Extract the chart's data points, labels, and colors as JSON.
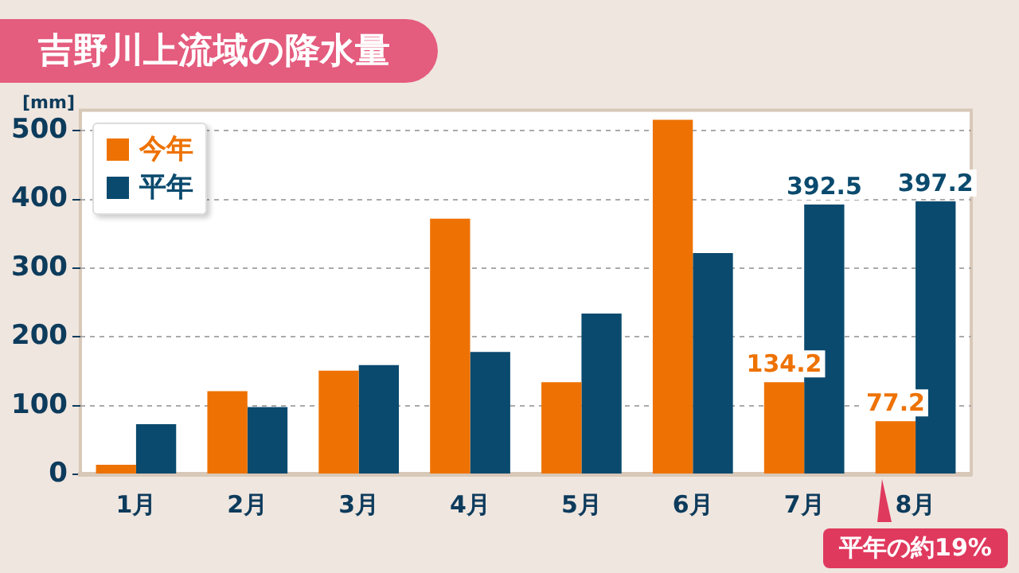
{
  "chart_data": {
    "type": "bar",
    "title": "吉野川上流域の降水量",
    "ylabel": "[mm]",
    "categories": [
      "1月",
      "2月",
      "3月",
      "4月",
      "5月",
      "6月",
      "7月",
      "8月"
    ],
    "series": [
      {
        "name": "今年",
        "color": "#ee7203",
        "values": [
          14,
          121,
          151,
          372,
          134,
          516,
          134.2,
          77.2
        ],
        "value_labels": [
          null,
          null,
          null,
          null,
          null,
          null,
          "134.2",
          "77.2"
        ]
      },
      {
        "name": "平年",
        "color": "#0a4a6e",
        "values": [
          73,
          98,
          159,
          178,
          234,
          322,
          392.5,
          397.2
        ],
        "value_labels": [
          null,
          null,
          null,
          null,
          null,
          null,
          "392.5",
          "397.2"
        ]
      }
    ],
    "ylim": [
      0,
      530
    ],
    "yticks": [
      0,
      100,
      200,
      300,
      400,
      500
    ],
    "grid": "y",
    "legend": "top left",
    "annotations": [
      "平年の約19%"
    ]
  }
}
